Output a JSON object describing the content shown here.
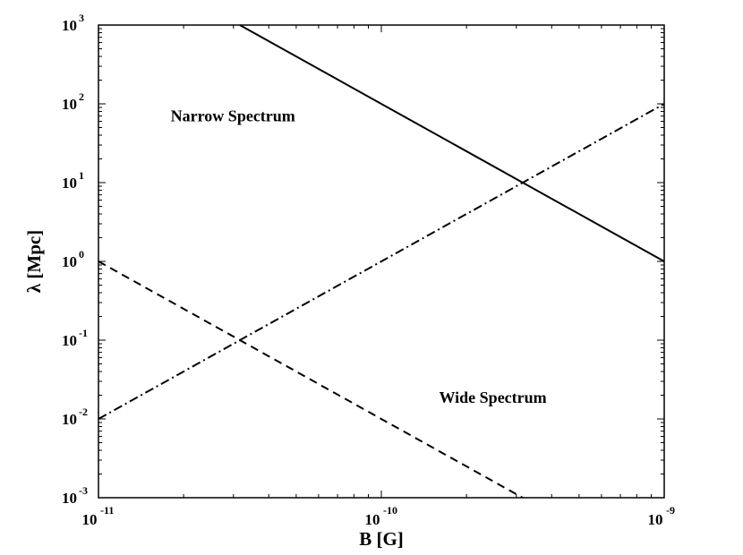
{
  "chart_data": {
    "type": "line",
    "xlabel": "B [G]",
    "ylabel": "λ  [Mpc]",
    "xscale": "log",
    "yscale": "log",
    "xlim": [
      1e-11,
      1e-09
    ],
    "ylim": [
      0.001,
      1000
    ],
    "x_ticks": [
      {
        "base": "10",
        "exp": "-11",
        "value": 1e-11
      },
      {
        "base": "10",
        "exp": "-10",
        "value": 1e-10
      },
      {
        "base": "10",
        "exp": "-9",
        "value": 1e-09
      }
    ],
    "y_ticks": [
      {
        "base": "10",
        "exp": "-3",
        "value": 0.001
      },
      {
        "base": "10",
        "exp": "-2",
        "value": 0.01
      },
      {
        "base": "10",
        "exp": "-1",
        "value": 0.1
      },
      {
        "base": "10",
        "exp": "0",
        "value": 1
      },
      {
        "base": "10",
        "exp": "1",
        "value": 10
      },
      {
        "base": "10",
        "exp": "2",
        "value": 100
      },
      {
        "base": "10",
        "exp": "3",
        "value": 1000
      }
    ],
    "grid": false,
    "series": [
      {
        "style": "solid",
        "color": "#000000",
        "x": [
          3.16e-11,
          1e-09
        ],
        "y": [
          1000,
          1
        ]
      },
      {
        "style": "dashdot",
        "color": "#000000",
        "x": [
          1e-11,
          1e-09
        ],
        "y": [
          0.01,
          100
        ]
      },
      {
        "style": "dashed",
        "color": "#000000",
        "x": [
          1e-11,
          3.16e-10
        ],
        "y": [
          1,
          0.001
        ]
      }
    ],
    "annotations": [
      {
        "text": "Narrow Spectrum",
        "x": 1.8e-11,
        "y": 60
      },
      {
        "text": "Wide Spectrum",
        "x": 1.6e-10,
        "y": 0.016
      }
    ]
  }
}
